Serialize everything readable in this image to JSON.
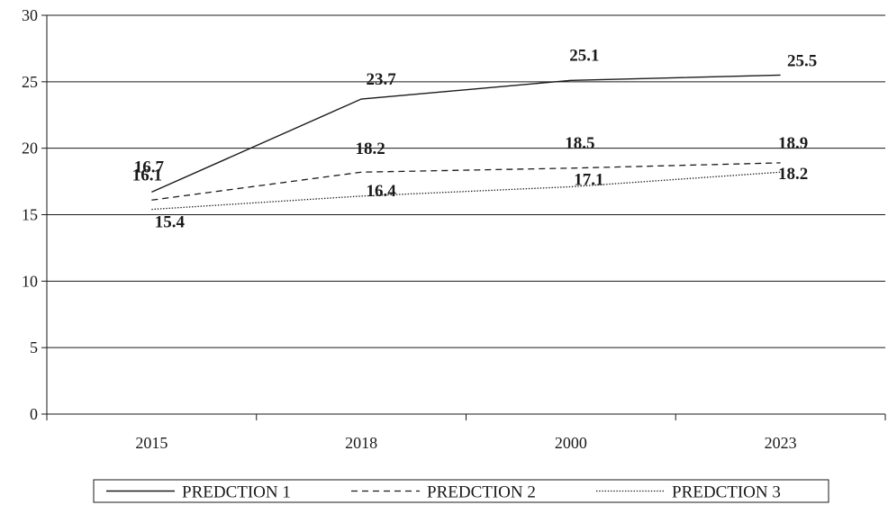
{
  "chart_data": {
    "type": "line",
    "categories": [
      "2015",
      "2018",
      "2000",
      "2023"
    ],
    "series": [
      {
        "name": "PREDCTION 1",
        "values": [
          16.7,
          23.7,
          25.1,
          25.5
        ],
        "labels": [
          "16.7",
          "23.7",
          "25.1",
          "25.5"
        ],
        "dash": "solid",
        "color": "#1a1a1a"
      },
      {
        "name": "PREDCTION 2",
        "values": [
          16.1,
          18.2,
          18.5,
          18.9
        ],
        "labels": [
          "16.1",
          "18.2",
          "18.5",
          "18.9"
        ],
        "dash": "dashed",
        "color": "#1a1a1a"
      },
      {
        "name": "PREDCTION 3",
        "values": [
          15.4,
          16.4,
          17.1,
          18.2
        ],
        "labels": [
          "15.4",
          "16.4",
          "17.1",
          "18.2"
        ],
        "dash": "dotted",
        "color": "#1a1a1a"
      }
    ],
    "title": "",
    "xlabel": "",
    "ylabel": "",
    "ylim": [
      0,
      30
    ],
    "yticks": [
      "0",
      "5",
      "10",
      "15",
      "20",
      "25",
      "30"
    ],
    "grid": true,
    "legend_position": "bottom"
  }
}
